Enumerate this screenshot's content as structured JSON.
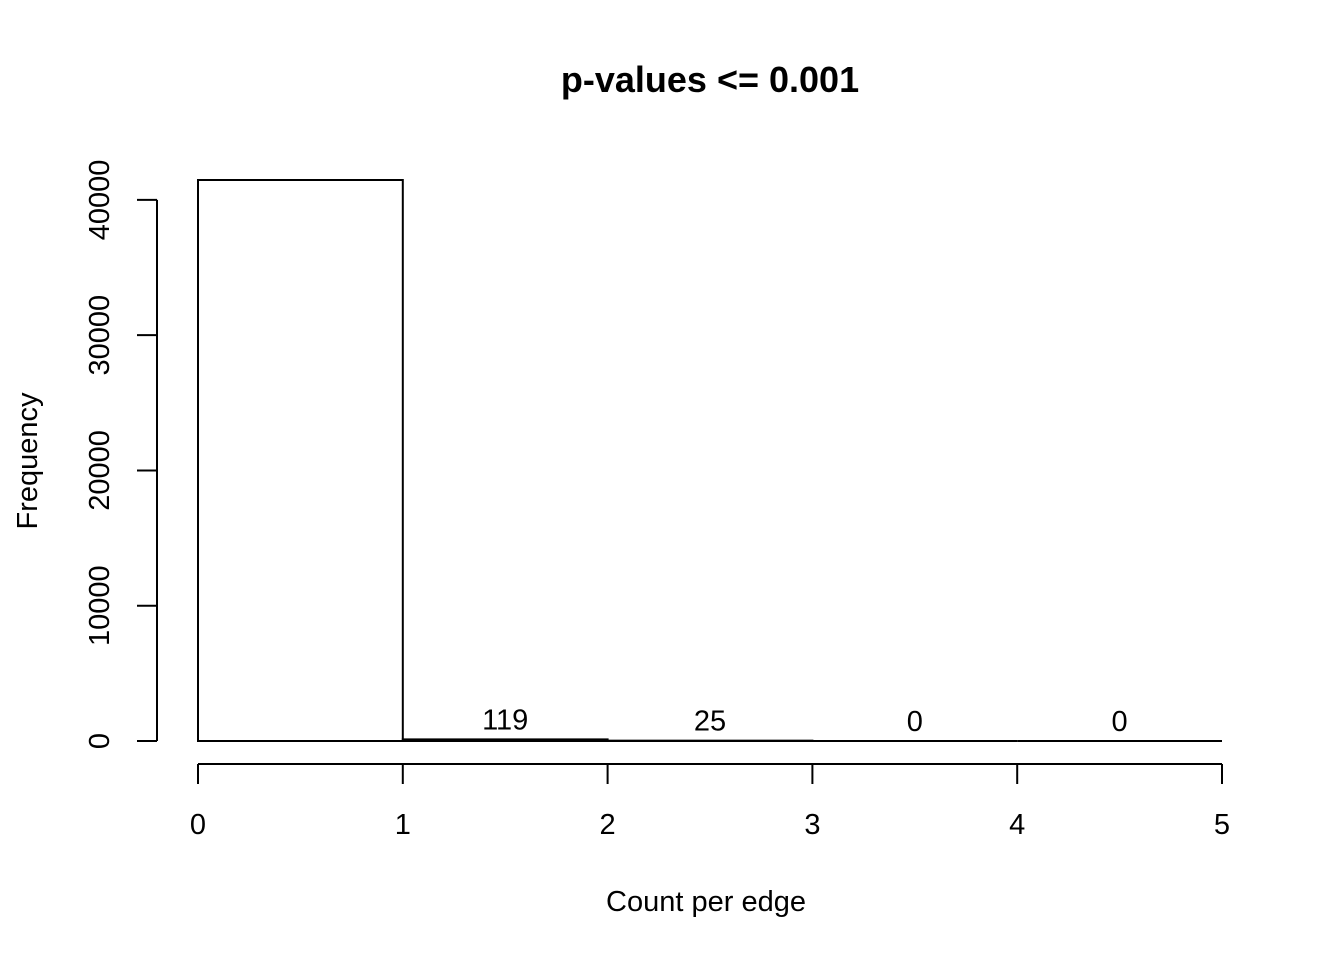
{
  "chart_data": {
    "type": "bar",
    "title": "p-values <= 0.001",
    "xlabel": "Count per edge",
    "ylabel": "Frequency",
    "bins": [
      {
        "start": 0,
        "end": 1,
        "value": 41472,
        "label": "41472"
      },
      {
        "start": 1,
        "end": 2,
        "value": 119,
        "label": "119"
      },
      {
        "start": 2,
        "end": 3,
        "value": 25,
        "label": "25"
      },
      {
        "start": 3,
        "end": 4,
        "value": 0,
        "label": "0"
      },
      {
        "start": 4,
        "end": 5,
        "value": 0,
        "label": "0"
      }
    ],
    "xlim": [
      0,
      5
    ],
    "ylim": [
      0,
      41472
    ],
    "x_ticks": [
      0,
      1,
      2,
      3,
      4,
      5
    ],
    "x_tick_labels": [
      "0",
      "1",
      "2",
      "3",
      "4",
      "5"
    ],
    "y_ticks": [
      0,
      10000,
      20000,
      30000,
      40000
    ],
    "y_tick_labels": [
      "0",
      "10000",
      "20000",
      "30000",
      "40000"
    ],
    "grid": false,
    "bar_fill": "#ffffff",
    "bar_stroke": "#000000"
  }
}
